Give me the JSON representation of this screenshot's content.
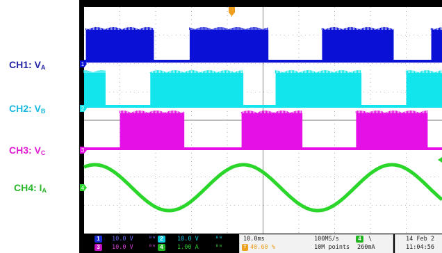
{
  "labels": {
    "ch1": {
      "text": "CH1: V",
      "sub": "A",
      "color": "#2424a8"
    },
    "ch2": {
      "text": "CH2: V",
      "sub": "B",
      "color": "#18b8e0"
    },
    "ch3": {
      "text": "CH3: V",
      "sub": "C",
      "color": "#e01ad2"
    },
    "ch4": {
      "text": "CH4: I",
      "sub": "A",
      "color": "#29b629"
    }
  },
  "status": {
    "ch1_scale": "10.0 V",
    "ch2_scale": "10.0 V",
    "ch3_scale": "10.0 V",
    "ch4_scale": "1.00 A",
    "ch1_num": "1",
    "ch2_num": "2",
    "ch3_num": "3",
    "ch4_num": "4",
    "bw_symbol": "ᴮᵂ",
    "timebase": "10.0ms",
    "trig_pos": "40.60 %",
    "sample_rate": "100MS/s",
    "record_length": "10M points",
    "trig_ch": "4",
    "trig_slope": "\\",
    "trig_level": "260mA",
    "date": "14 Feb 2",
    "time": "11:04:56"
  },
  "colors": {
    "ch1": "#0a10d6",
    "ch2": "#12e6ec",
    "ch3": "#e510e6",
    "ch4": "#2ad62a",
    "screen_bg": "#ffffff",
    "grid": "#7a7a7a",
    "trigger_marker": "#f0a020"
  },
  "chart_data": {
    "type": "line",
    "title": "",
    "xlabel": "",
    "ylabel": "",
    "time_per_div": "10.0ms",
    "divisions_x": 10,
    "divisions_y": 8,
    "series": [
      {
        "name": "CH1: VA",
        "channel": 1,
        "waveform": "PWM square",
        "volts_per_div": 10.0,
        "period_ms": 50,
        "duty": 0.55,
        "high_segments_ms": [
          [
            0.5,
            19.5
          ],
          [
            29.5,
            51.5
          ],
          [
            66.5,
            86.5
          ],
          [
            97,
            100
          ]
        ]
      },
      {
        "name": "CH2: VB",
        "channel": 2,
        "waveform": "PWM square",
        "volts_per_div": 10.0,
        "period_ms": 50,
        "duty": 0.55,
        "high_segments_ms": [
          [
            0,
            6
          ],
          [
            18.5,
            44.5
          ],
          [
            53.5,
            77.5
          ],
          [
            90,
            100
          ]
        ]
      },
      {
        "name": "CH3: VC",
        "channel": 3,
        "waveform": "PWM square",
        "volts_per_div": 10.0,
        "period_ms": 50,
        "duty": 0.55,
        "high_segments_ms": [
          [
            10,
            28
          ],
          [
            44,
            61
          ],
          [
            76,
            96
          ]
        ]
      },
      {
        "name": "CH4: IA",
        "channel": 4,
        "waveform": "sine",
        "amps_per_div": 1.0,
        "frequency_hz": 20,
        "amplitude_A": 1.3,
        "peaks_ms": [
          [
            3,
            1.2
          ],
          [
            22,
            -1.3
          ],
          [
            43,
            1.3
          ],
          [
            66,
            -1.2
          ],
          [
            85,
            1.2
          ]
        ]
      }
    ]
  }
}
